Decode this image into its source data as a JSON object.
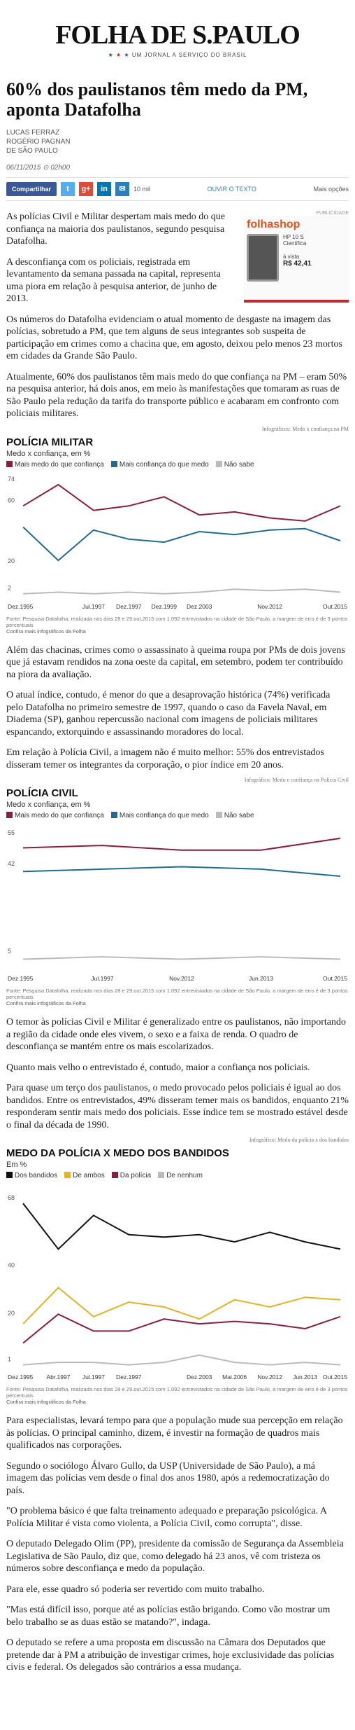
{
  "header": {
    "logo": "FOLHA DE S.PAULO",
    "tagline": "UM JORNAL A SERVIÇO DO BRASIL"
  },
  "article": {
    "title": "60% dos paulistanos têm medo da PM, aponta Datafolha",
    "authors": [
      "LUCAS FERRAZ",
      "ROGÉRIO PAGNAN",
      "DE SÃO PAULO"
    ],
    "date": "06/11/2015",
    "time": "02h00"
  },
  "share": {
    "button": "Compartilhar",
    "count": "10 mil",
    "listen": "OUVIR O TEXTO",
    "more": "Mais opções"
  },
  "ad": {
    "label": "PUBLICIDADE",
    "brand": "folhashop",
    "product": "HP 10 S",
    "product_type": "Científica",
    "payment": "à vista",
    "price": "R$ 42,41"
  },
  "intro": [
    "As polícias Civil e Militar despertam mais medo do que confiança na maioria dos paulistanos, segundo pesquisa Datafolha.",
    "A desconfiança com os policiais, registrada em levantamento da semana passada na capital, representa uma piora em relação à pesquisa anterior, de junho de 2013."
  ],
  "sections": [
    {
      "paragraphs": [
        "Os números do Datafolha evidenciam o atual momento de desgaste na imagem das polícias, sobretudo a PM, que tem alguns de seus integrantes sob suspeita de participação em crimes como a chacina que, em agosto, deixou pelo menos 23 mortos em cidades da Grande São Paulo.",
        "Atualmente, 60% dos paulistanos têm mais medo do que confiança na PM – eram 50% na pesquisa anterior, há dois anos, em meio às manifestações que tomaram as ruas de São Paulo pela redução da tarifa do transporte público e acabaram em confronto com policiais militares."
      ],
      "credit": "Infográficos: Medo x confiança na PM",
      "chart_data": {
        "type": "line",
        "title": "POLÍCIA MILITAR",
        "subtitle": "Medo x confiança, em %",
        "categories": [
          "Dez.1995",
          null,
          "Jul.1997",
          "Dez.1997",
          "Dez.1999",
          "Dez.2003",
          null,
          "Nov.2012",
          null,
          "Out.2015"
        ],
        "series": [
          {
            "name": "Mais medo do que confiança",
            "color": "#8c1d40",
            "values": [
              60,
              74,
              57,
              60,
              66,
              54,
              56,
              52,
              50,
              60
            ]
          },
          {
            "name": "Mais confiança do que medo",
            "color": "#1f6b94",
            "values": [
              46,
              24,
              44,
              38,
              36,
              43,
              41,
              44,
              45,
              37
            ]
          },
          {
            "name": "Não sabe",
            "color": "#bbbbbb",
            "values": [
              2,
              3,
              2,
              3,
              2,
              3,
              5,
              4,
              5,
              3
            ]
          }
        ],
        "ylim": [
          0,
          80
        ],
        "yticks": [
          2,
          20,
          60,
          74
        ],
        "grid": false,
        "source": "Fonte: Pesquisa Datafolha, realizada nos dias 28 e 29.out.2015 com 1.092 entrevistados na cidade de São Paulo, a margem de erro é de 3 pontos percentuais",
        "more": "Confira mais infográficos da Folha"
      }
    },
    {
      "paragraphs": [
        "Além das chacinas, crimes como o assassinato à queima roupa por PMs de dois jovens que já estavam rendidos na zona oeste da capital, em setembro, podem ter contribuído na piora da avaliação.",
        "O atual índice, contudo, é menor do que a desaprovação histórica (74%) verificada pelo Datafolha no primeiro semestre de 1997, quando o caso da Favela Naval, em Diadema (SP), ganhou repercussão nacional com imagens de policiais militares espancando, extorquindo e assassinando moradores do local.",
        "Em relação à Polícia Civil, a imagem não é muito melhor: 55% dos entrevistados disseram temer os integrantes da corporação, o pior índice em 20 anos."
      ],
      "credit": "Infográfico: Medo e confiança na Polícia Civil",
      "chart_data": {
        "type": "line",
        "title": "POLÍCIA CIVIL",
        "subtitle": "Medo x confiança, em %",
        "categories": [
          "Dez.1995",
          "Jul.1997",
          "Nov.2012",
          "Jun.2013",
          "Out.2015"
        ],
        "series": [
          {
            "name": "Mais medo do que confiança",
            "color": "#8c1d40",
            "values": [
              51,
              52,
              50,
              50,
              55
            ]
          },
          {
            "name": "Mais confiança do que medo",
            "color": "#1f6b94",
            "values": [
              41,
              42,
              43,
              42,
              39
            ]
          },
          {
            "name": "Não sabe",
            "color": "#bbbbbb",
            "values": [
              4,
              5,
              4,
              5,
              4
            ]
          }
        ],
        "ylim": [
          0,
          60
        ],
        "yticks": [
          5,
          42,
          55
        ],
        "grid": false,
        "source": "Fonte: Pesquisa Datafolha, realizada nos dias 28 e 29.out.2015 com 1.092 entrevistados na cidade de São Paulo, a margem de erro é de 3 pontos percentuais",
        "more": "Confira mais infográficos da Folha"
      }
    },
    {
      "paragraphs": [
        "O temor às polícias Civil e Militar é generalizado entre os paulistanos, não importando a região da cidade onde eles vivem, o sexo e a faixa de renda. O quadro de desconfiança se mantém entre os mais escolarizados.",
        "Quanto mais velho o entrevistado é, contudo, maior a confiança nos policiais.",
        "Para quase um terço dos paulistanos, o medo provocado pelos policiais é igual ao dos bandidos. Entre os entrevistados, 49% disseram temer mais os bandidos, enquanto 21% responderam sentir mais medo dos policiais. Esse índice tem se mostrado estável desde o final da década de 1990."
      ],
      "credit": "Infográfico: Medo da polícia x dos bandidos",
      "chart_data": {
        "type": "line",
        "title": "MEDO DA POLÍCIA X MEDO DOS BANDIDOS",
        "subtitle": "Em %",
        "categories": [
          "Dez.1995",
          "Abr.1997",
          "Jul.1997",
          "Dez.1997",
          null,
          "Dez.2003",
          "Mai.2006",
          "Nov.2012",
          "Jun.2013",
          "Out.2015"
        ],
        "series": [
          {
            "name": "Dos bandidos",
            "color": "#111111",
            "values": [
              68,
              49,
              63,
              55,
              54,
              55,
              52,
              56,
              52,
              49
            ]
          },
          {
            "name": "De ambos",
            "color": "#e3b325",
            "values": [
              18,
              33,
              21,
              27,
              25,
              20,
              28,
              25,
              29,
              28
            ]
          },
          {
            "name": "Da polícia",
            "color": "#8c1d40",
            "values": [
              10,
              22,
              15,
              15,
              20,
              18,
              19,
              18,
              16,
              21
            ]
          },
          {
            "name": "De nenhum",
            "color": "#bbbbbb",
            "values": [
              1,
              2,
              2,
              1,
              2,
              5,
              2,
              1,
              2,
              1
            ]
          }
        ],
        "ylim": [
          0,
          75
        ],
        "yticks": [
          1,
          20,
          40,
          68
        ],
        "grid": false,
        "source": "Fonte: Pesquisa Datafolha, realizada nos dias 28 e 29.out.2015 com 1.092 entrevistados na cidade de São Paulo, a margem de erro é de 3 pontos percentuais",
        "more": "Confira mais infográficos da Folha"
      }
    }
  ],
  "closing": [
    "Para especialistas, levará tempo para que a população mude sua percepção em relação às polícias. O principal caminho, dizem, é investir na formação de quadros mais qualificados nas corporações.",
    "Segundo o sociólogo Álvaro Gullo, da USP (Universidade de São Paulo), a má imagem das polícias vem desde o final dos anos 1980, após a redemocratização do país.",
    "\"O problema básico é que falta treinamento adequado e preparação psicológica. A Polícia Militar é vista como violenta, a Polícia Civil, como corrupta\", disse.",
    "O deputado Delegado Olim (PP), presidente da comissão de Segurança da Assembleia Legislativa de São Paulo, diz que, como delegado há 23 anos, vê com tristeza os números sobre desconfiança e medo da população.",
    "Para ele, esse quadro só poderia ser revertido com muito trabalho.",
    "\"Mas está difícil isso, porque até as polícias estão brigando. Como vão mostrar um belo trabalho se as duas estão se matando?\", indaga.",
    "O deputado se refere a uma proposta em discussão na Câmara dos Deputados que pretende dar à PM a atribuição de investigar crimes, hoje exclusividade das polícias civis e federal. Os delegados são contrários a essa mudança."
  ]
}
